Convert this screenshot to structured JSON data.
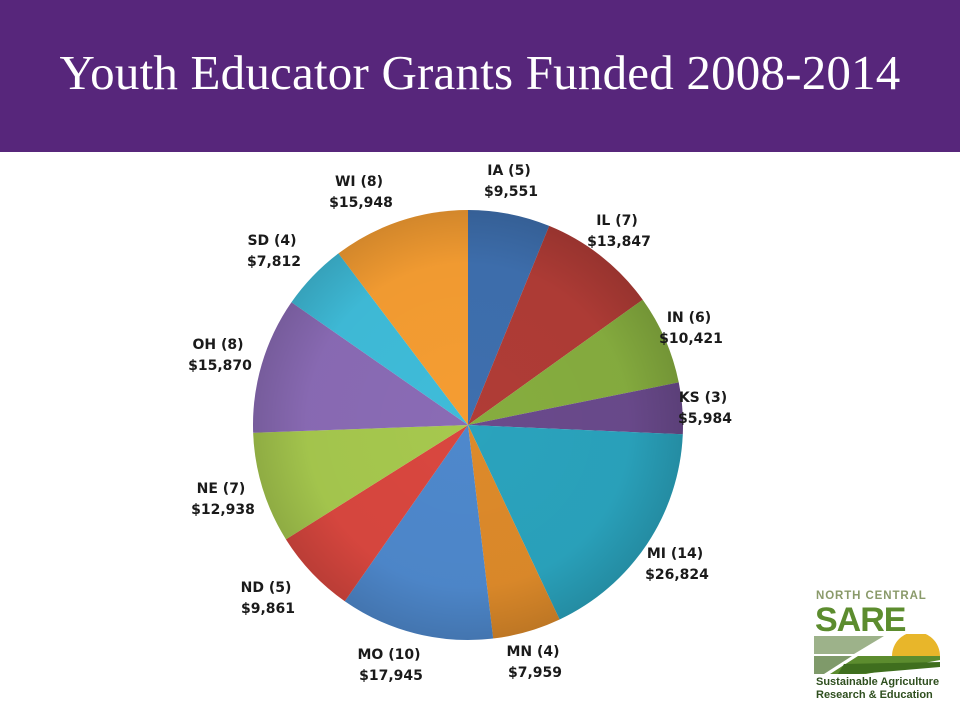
{
  "slide": {
    "title": "Youth Educator Grants Funded 2008-2014"
  },
  "colors": {
    "title_bar": "#57267b",
    "title_text": "#ffffff",
    "logo_green": "#5c8c2e",
    "logo_gold": "#e8b62a"
  },
  "chart_data": {
    "type": "pie",
    "title": "",
    "start": "12 o'clock",
    "direction": "clockwise",
    "slices": [
      {
        "state": "IA",
        "grants": 5,
        "count_label": "IA (5)",
        "value": 9551,
        "value_label": "$9,551",
        "color": "#3e6fae"
      },
      {
        "state": "IL",
        "grants": 7,
        "count_label": "IL (7)",
        "value": 13847,
        "value_label": "$13,847",
        "color": "#b03c36"
      },
      {
        "state": "IN",
        "grants": 6,
        "count_label": "IN (6)",
        "value": 10421,
        "value_label": "$10,421",
        "color": "#86ad3f"
      },
      {
        "state": "KS",
        "grants": 3,
        "count_label": "KS (3)",
        "value": 5984,
        "value_label": "$5,984",
        "color": "#6a4a8c"
      },
      {
        "state": "MI",
        "grants": 14,
        "count_label": "MI (14)",
        "value": 26824,
        "value_label": "$26,824",
        "color": "#2aa3bd"
      },
      {
        "state": "MN",
        "grants": 4,
        "count_label": "MN (4)",
        "value": 7959,
        "value_label": "$7,959",
        "color": "#dd8a2a"
      },
      {
        "state": "MO",
        "grants": 10,
        "count_label": "MO (10)",
        "value": 17945,
        "value_label": "$17,945",
        "color": "#4e88cc"
      },
      {
        "state": "ND",
        "grants": 5,
        "count_label": "ND (5)",
        "value": 9861,
        "value_label": "$9,861",
        "color": "#d9473f"
      },
      {
        "state": "NE",
        "grants": 7,
        "count_label": "NE (7)",
        "value": 12938,
        "value_label": "$12,938",
        "color": "#a6c84e"
      },
      {
        "state": "OH",
        "grants": 8,
        "count_label": "OH (8)",
        "value": 15870,
        "value_label": "$15,870",
        "color": "#8a6bb5"
      },
      {
        "state": "SD",
        "grants": 4,
        "count_label": "SD (4)",
        "value": 7812,
        "value_label": "$7,812",
        "color": "#3fbcd9"
      },
      {
        "state": "WI",
        "grants": 8,
        "count_label": "WI (8)",
        "value": 15948,
        "value_label": "$15,948",
        "color": "#f59d32"
      }
    ]
  },
  "logo": {
    "line1": "NORTH CENTRAL",
    "line2": "SARE",
    "tagline1": "Sustainable Agriculture",
    "tagline2": "Research & Education"
  }
}
